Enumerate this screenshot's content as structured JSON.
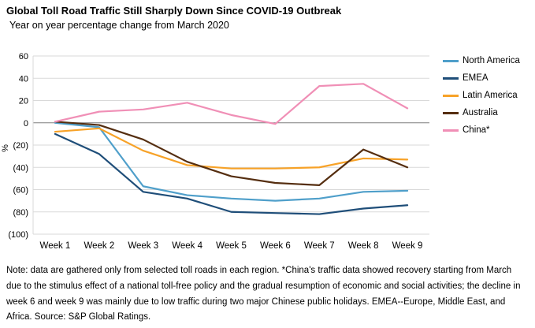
{
  "header": {
    "title": "Global Toll Road Traffic Still Sharply Down Since COVID-19 Outbreak",
    "subtitle": "Year on year percentage change from March 2020"
  },
  "chart_data": {
    "type": "line",
    "x": [
      "Week 1",
      "Week 2",
      "Week 3",
      "Week 4",
      "Week 5",
      "Week 6",
      "Week 7",
      "Week 8",
      "Week 9"
    ],
    "series": [
      {
        "name": "North America",
        "color": "#4F9FCA",
        "values": [
          0,
          -4,
          -57,
          -65,
          -68,
          -70,
          -68,
          -62,
          -61
        ]
      },
      {
        "name": "EMEA",
        "color": "#1F4E79",
        "values": [
          -10,
          -28,
          -62,
          -68,
          -80,
          -81,
          -82,
          -77,
          -74
        ]
      },
      {
        "name": "Latin America",
        "color": "#F7A228",
        "values": [
          -8,
          -5,
          -25,
          -38,
          -41,
          -41,
          -40,
          -32,
          -33
        ]
      },
      {
        "name": "Australia",
        "color": "#552E10",
        "values": [
          1,
          -2,
          -15,
          -35,
          -48,
          -54,
          -56,
          -24,
          -40
        ]
      },
      {
        "name": "China*",
        "color": "#F08FB6",
        "values": [
          1,
          10,
          12,
          18,
          7,
          -1,
          33,
          35,
          13
        ]
      }
    ],
    "title": "Global Toll Road Traffic Still Sharply Down Since COVID-19 Outbreak",
    "xlabel": "",
    "ylabel": "%",
    "ylim": [
      -100,
      60
    ],
    "yticks": [
      60,
      40,
      20,
      0,
      -20,
      -40,
      -60,
      -80,
      -100
    ],
    "ytick_labels": [
      "60",
      "40",
      "20",
      "0",
      "(20)",
      "(40)",
      "(60)",
      "(80)",
      "(100)"
    ],
    "grid": true,
    "legend_position": "right",
    "grid_color": "#D9D9D9",
    "zero_line_color": "#7F7F7F"
  },
  "note": {
    "text": "Note: data are gathered only from selected toll roads in each region. *China's traffic data showed recovery starting from March due to the stimulus effect of a national toll-free policy and the gradual resumption of economic and social activities; the decline in week 6 and week 9 was mainly due to low traffic during two major Chinese public holidays. EMEA--Europe, Middle East, and Africa. Source: S&P Global Ratings."
  }
}
